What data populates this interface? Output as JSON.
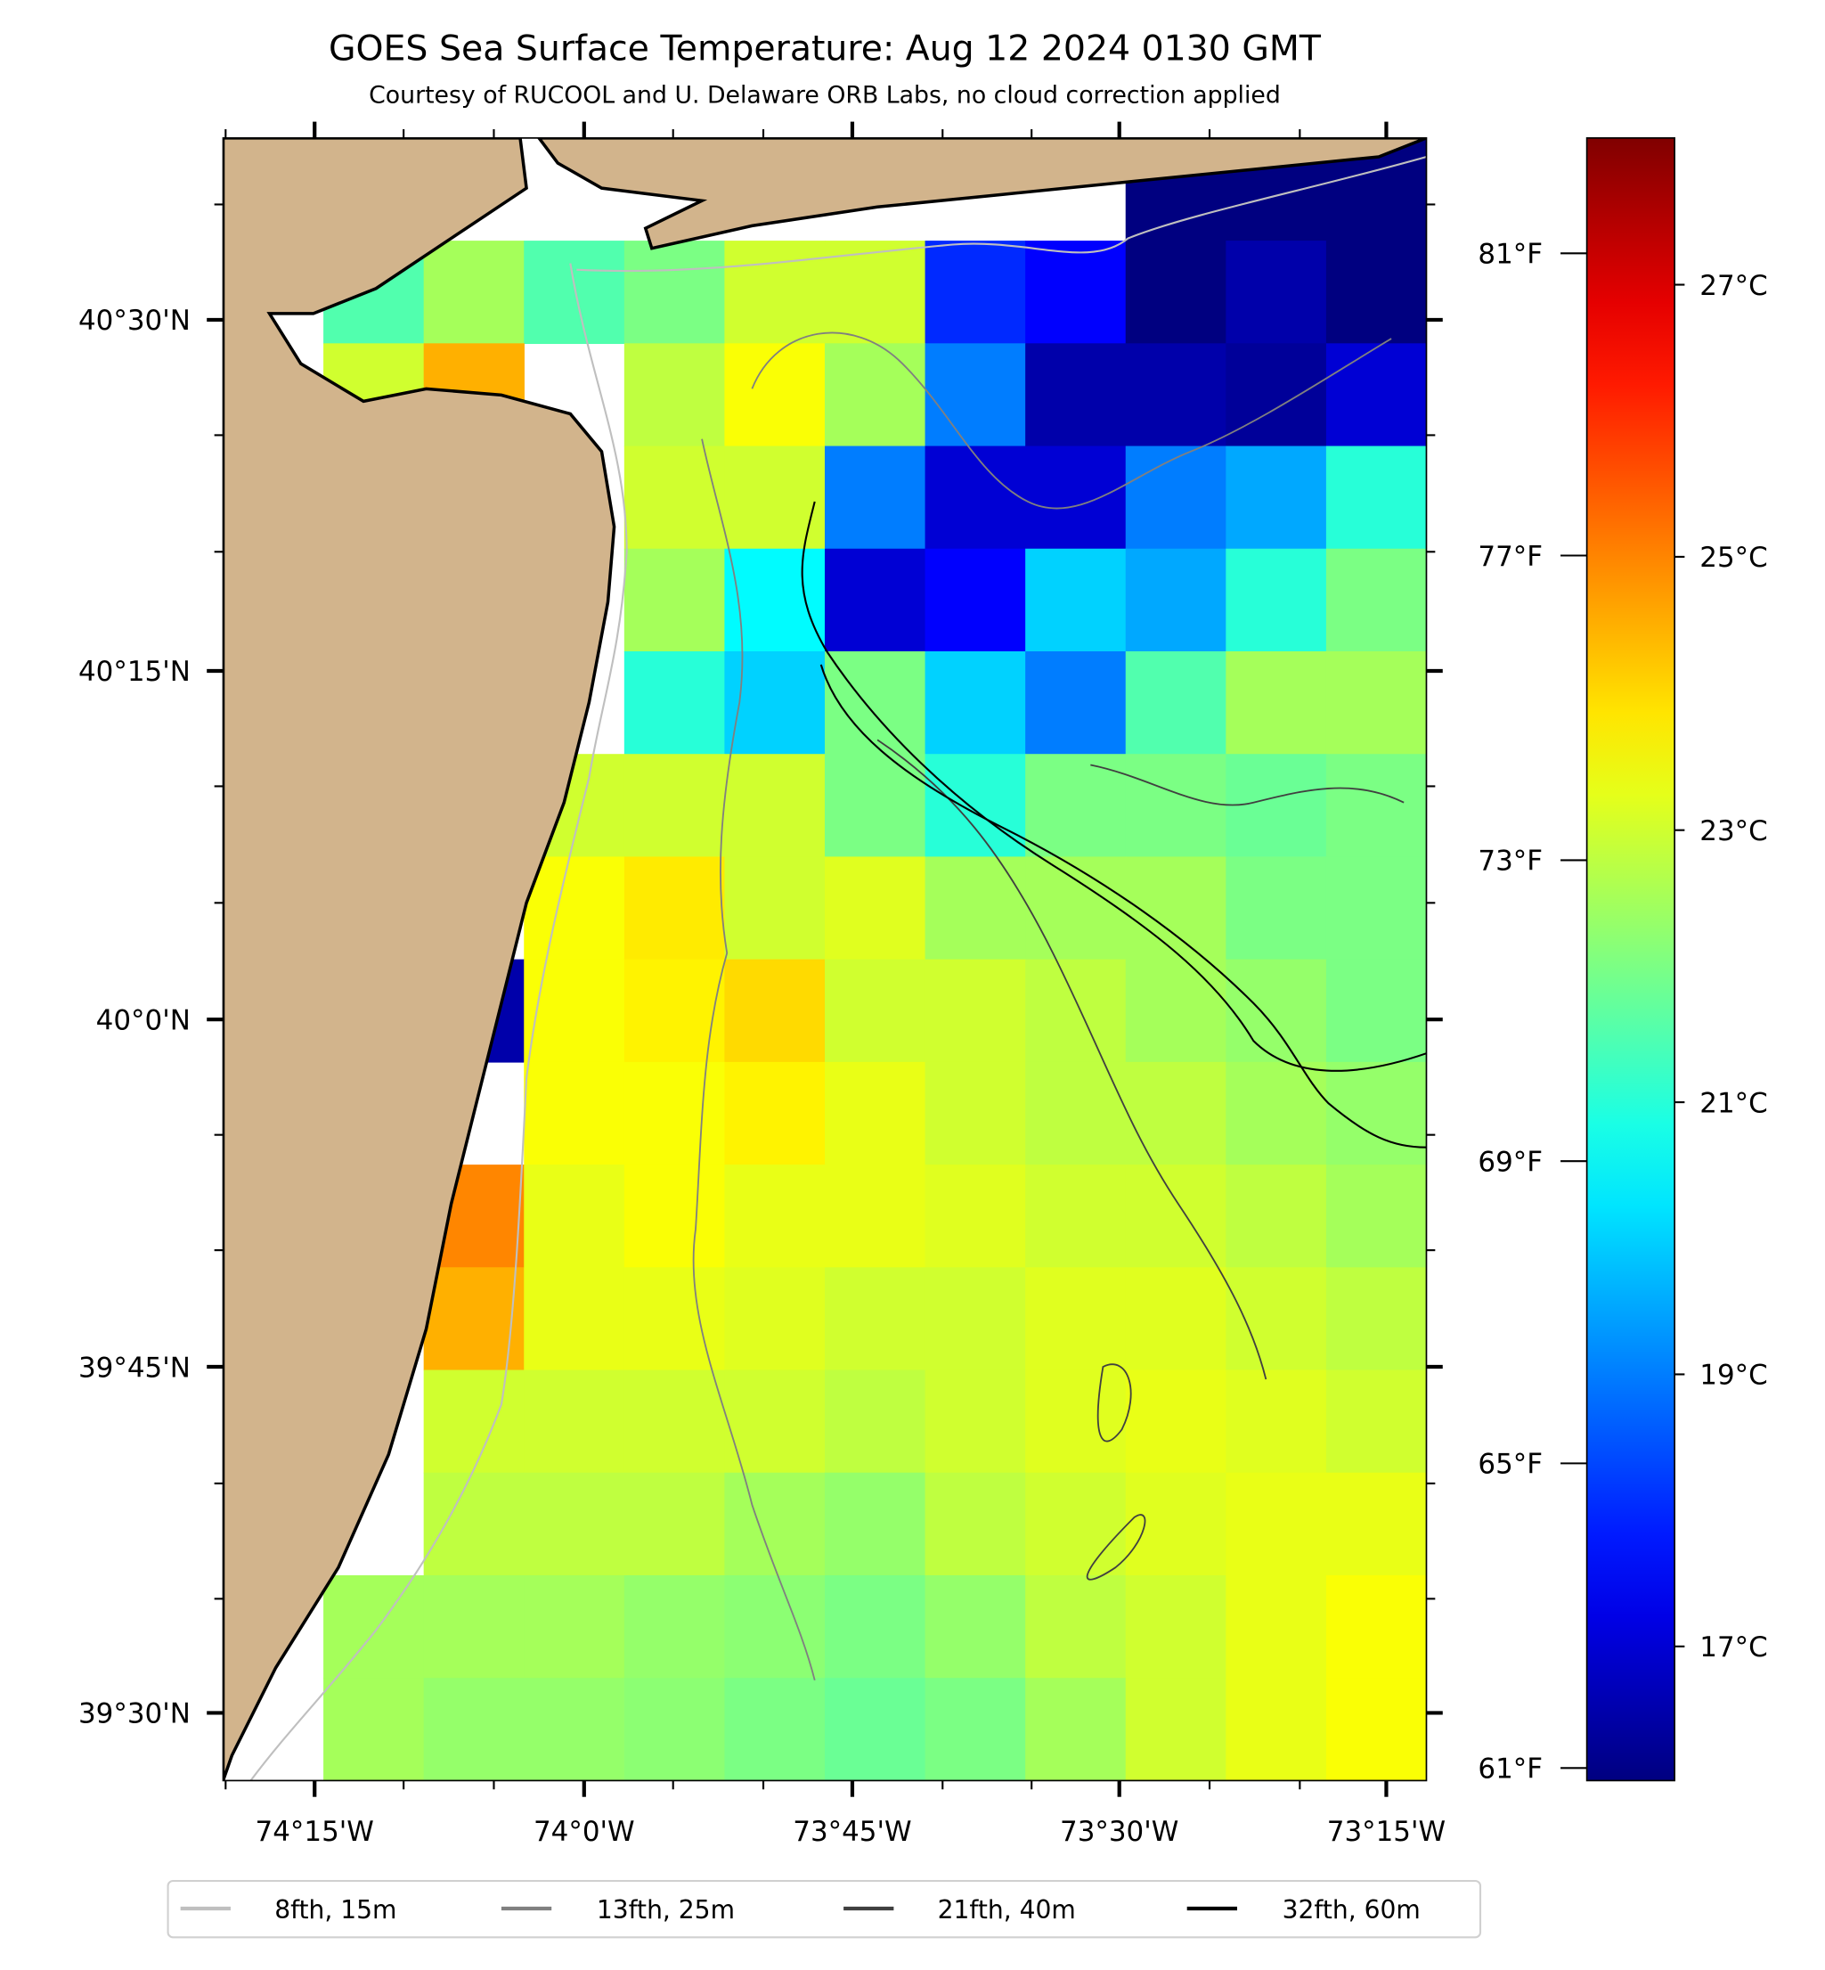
{
  "title": "GOES Sea Surface Temperature: Aug 12 2024 0130 GMT",
  "subtitle": "Courtesy of RUCOOL and U. Delaware ORB Labs, no cloud correction applied",
  "lat_ticks": [
    "40°30'N",
    "40°15'N",
    "40°0'N",
    "39°45'N",
    "39°30'N"
  ],
  "lon_ticks": [
    "74°15'W",
    "74°0'W",
    "73°45'W",
    "73°30'W",
    "73°15'W"
  ],
  "colorbar": {
    "range_c": [
      16.0,
      28.1
    ],
    "celsius_ticks": [
      "27°C",
      "25°C",
      "23°C",
      "21°C",
      "19°C",
      "17°C"
    ],
    "fahrenheit_ticks": [
      "81°F",
      "77°F",
      "73°F",
      "69°F",
      "65°F",
      "61°F"
    ]
  },
  "legend": [
    {
      "label": "8fth, 15m",
      "color": "#bfbfbf"
    },
    {
      "label": "13fth, 25m",
      "color": "#808080"
    },
    {
      "label": "21fth, 40m",
      "color": "#404040"
    },
    {
      "label": "32fth, 60m",
      "color": "#000000"
    }
  ],
  "colors": {
    "land": "#d2b48c",
    "no_data": "#ffffff"
  },
  "chart_data": {
    "type": "heatmap",
    "units": "°C",
    "lon_range": [
      "74°20'W",
      "73°13'W"
    ],
    "lat_range": [
      "39°27'N",
      "40°37'N"
    ],
    "grid_note": "rows north to south, columns west to east, null = land/no data",
    "grid": [
      [
        null,
        null,
        null,
        null,
        null,
        null,
        null,
        null,
        null,
        16.0,
        16.0,
        16.0
      ],
      [
        null,
        21.5,
        22.5,
        21.5,
        22.0,
        23.0,
        23.0,
        18.0,
        17.5,
        16.0,
        16.5,
        16.0
      ],
      [
        null,
        23.0,
        24.5,
        null,
        22.8,
        23.5,
        22.5,
        19.0,
        16.5,
        16.5,
        16.3,
        17.0
      ],
      [
        null,
        null,
        null,
        null,
        23.0,
        23.0,
        19.0,
        17.0,
        17.0,
        19.0,
        19.5,
        21.0
      ],
      [
        null,
        null,
        null,
        null,
        22.5,
        20.5,
        17.0,
        17.5,
        20.0,
        19.5,
        21.0,
        22.0
      ],
      [
        null,
        null,
        null,
        null,
        21.0,
        20.0,
        22.0,
        20.0,
        19.0,
        21.5,
        22.5,
        22.5
      ],
      [
        null,
        null,
        null,
        23.0,
        23.0,
        23.0,
        22.0,
        21.0,
        22.0,
        22.0,
        21.8,
        22.0
      ],
      [
        null,
        null,
        null,
        23.5,
        23.8,
        23.0,
        23.2,
        22.5,
        22.5,
        22.5,
        22.0,
        22.0
      ],
      [
        null,
        null,
        16.5,
        23.5,
        23.7,
        24.0,
        23.0,
        23.0,
        22.8,
        22.5,
        22.3,
        22.0
      ],
      [
        null,
        null,
        null,
        23.5,
        23.5,
        23.7,
        23.3,
        23.0,
        22.8,
        22.8,
        22.5,
        22.3
      ],
      [
        null,
        null,
        25.0,
        23.3,
        23.5,
        23.3,
        23.3,
        23.2,
        23.0,
        23.0,
        22.8,
        22.5
      ],
      [
        null,
        null,
        24.5,
        23.3,
        23.3,
        23.2,
        23.0,
        23.0,
        23.2,
        23.2,
        23.0,
        22.8
      ],
      [
        null,
        null,
        23.0,
        23.0,
        23.0,
        23.0,
        22.8,
        23.0,
        23.2,
        23.3,
        23.2,
        23.0
      ],
      [
        null,
        null,
        22.8,
        22.8,
        22.8,
        22.5,
        22.3,
        22.8,
        23.0,
        23.2,
        23.3,
        23.3
      ],
      [
        null,
        22.5,
        22.5,
        22.5,
        22.3,
        22.2,
        22.0,
        22.3,
        22.8,
        23.0,
        23.3,
        23.5
      ],
      [
        null,
        22.5,
        22.3,
        22.3,
        22.2,
        22.0,
        21.8,
        22.0,
        22.5,
        23.0,
        23.3,
        23.5
      ]
    ]
  }
}
